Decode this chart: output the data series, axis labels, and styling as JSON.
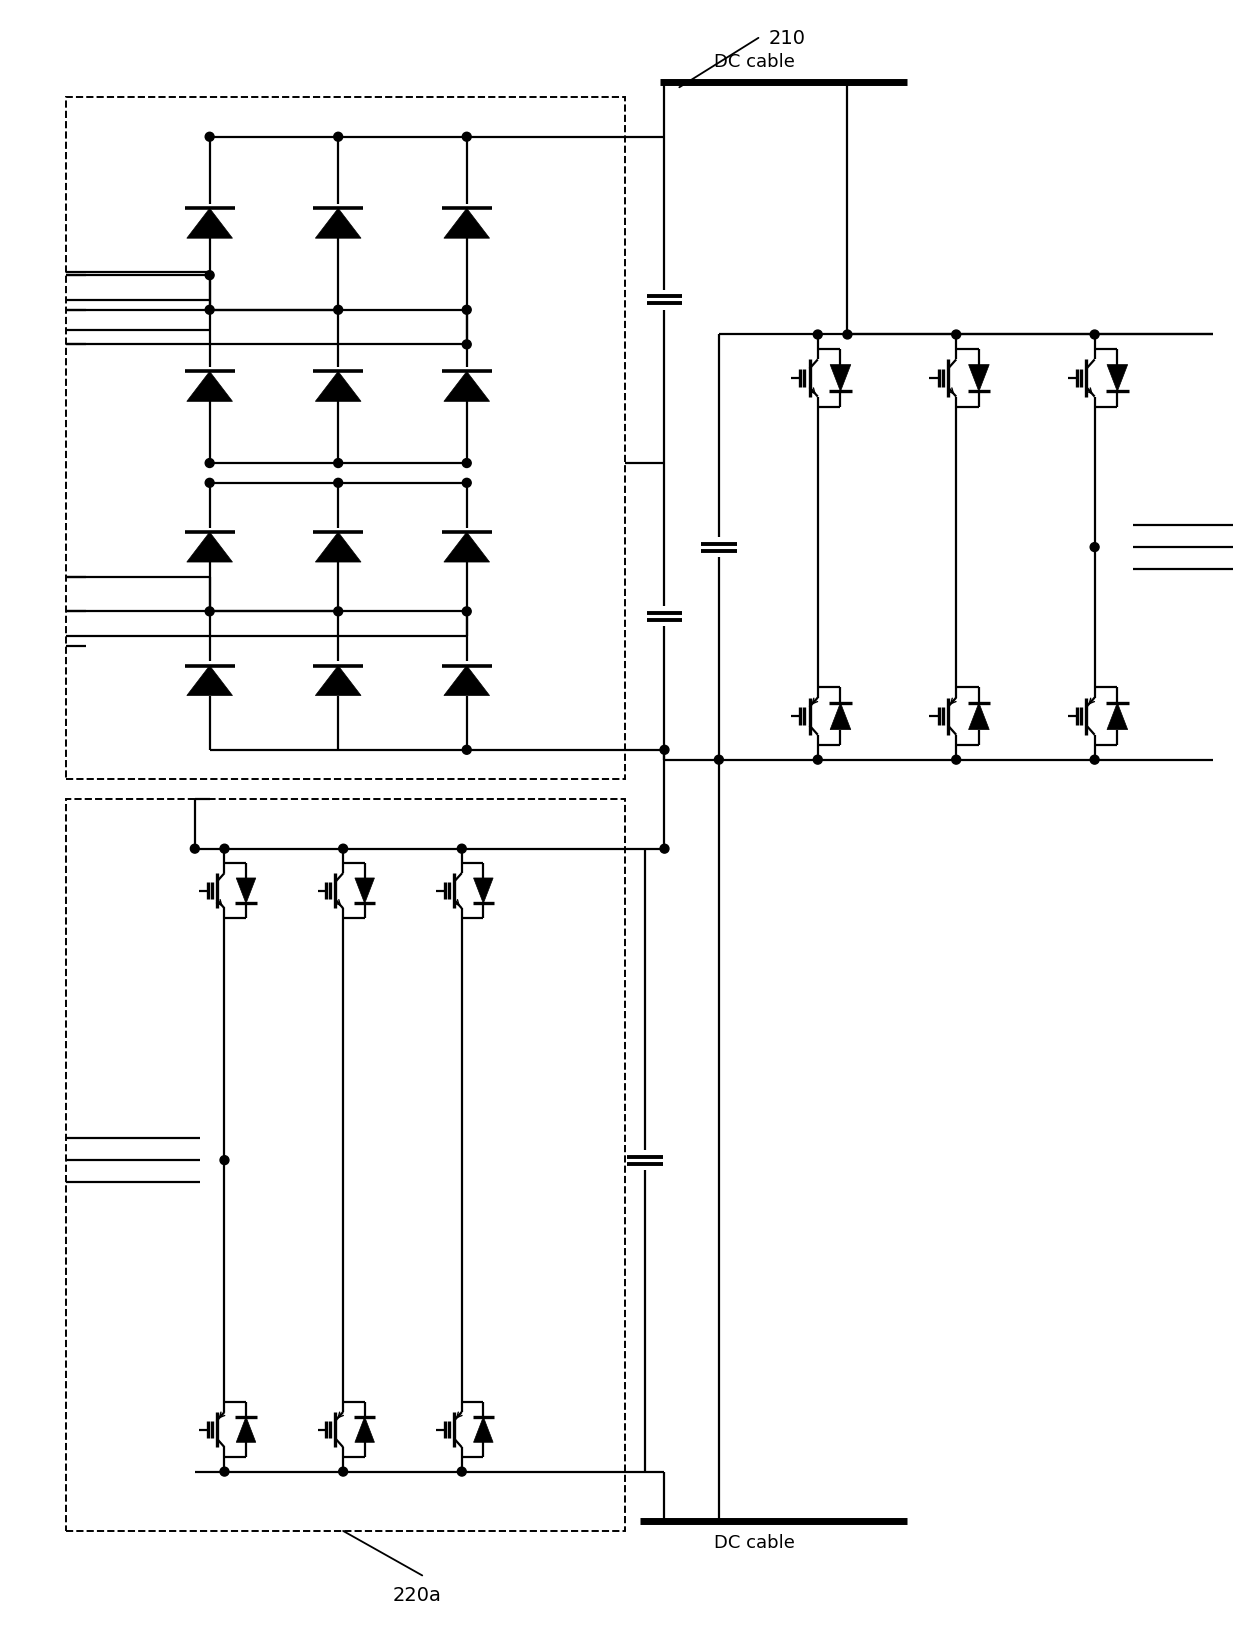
{
  "bg_color": "#ffffff",
  "line_color": "#000000",
  "lw": 1.6,
  "tlw": 5.0,
  "dlw": 1.4,
  "fig_width": 12.4,
  "fig_height": 16.4,
  "label_210": "210",
  "label_220a": "220a",
  "label_dc_cable_top": "DC cable",
  "label_dc_cable_bottom": "DC cable"
}
